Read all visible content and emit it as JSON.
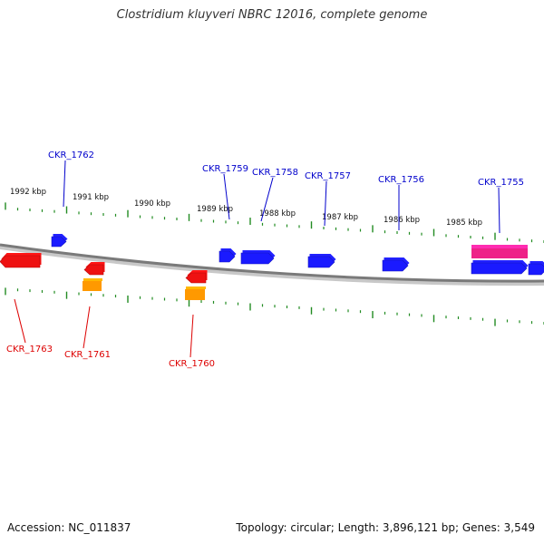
{
  "title": "Clostridium kluyveri NBRC 12016, complete genome",
  "footer": {
    "accession": "Accession: NC_011837",
    "stats": "Topology: circular; Length: 3,896,121 bp; Genes: 3,549"
  },
  "colors": {
    "forward_gene": "#1a1aff",
    "reverse_gene": "#ee1111",
    "reverse_rna": "#ff9900",
    "forward_highlight": "#ee2288",
    "ticks": "#228b22",
    "backbone": "#808080"
  },
  "kbp_labels": [
    "1992 kbp",
    "1991 kbp",
    "1990 kbp",
    "1989 kbp",
    "1988 kbp",
    "1987 kbp",
    "1986 kbp",
    "1985 kbp"
  ],
  "genes": [
    {
      "label": "CKR_1762",
      "strand": "forward"
    },
    {
      "label": "CKR_1759",
      "strand": "forward"
    },
    {
      "label": "CKR_1758",
      "strand": "forward"
    },
    {
      "label": "CKR_1757",
      "strand": "forward"
    },
    {
      "label": "CKR_1756",
      "strand": "forward"
    },
    {
      "label": "CKR_1755",
      "strand": "forward"
    },
    {
      "label": "CKR_1763",
      "strand": "reverse"
    },
    {
      "label": "CKR_1761",
      "strand": "reverse"
    },
    {
      "label": "CKR_1760",
      "strand": "reverse"
    }
  ]
}
